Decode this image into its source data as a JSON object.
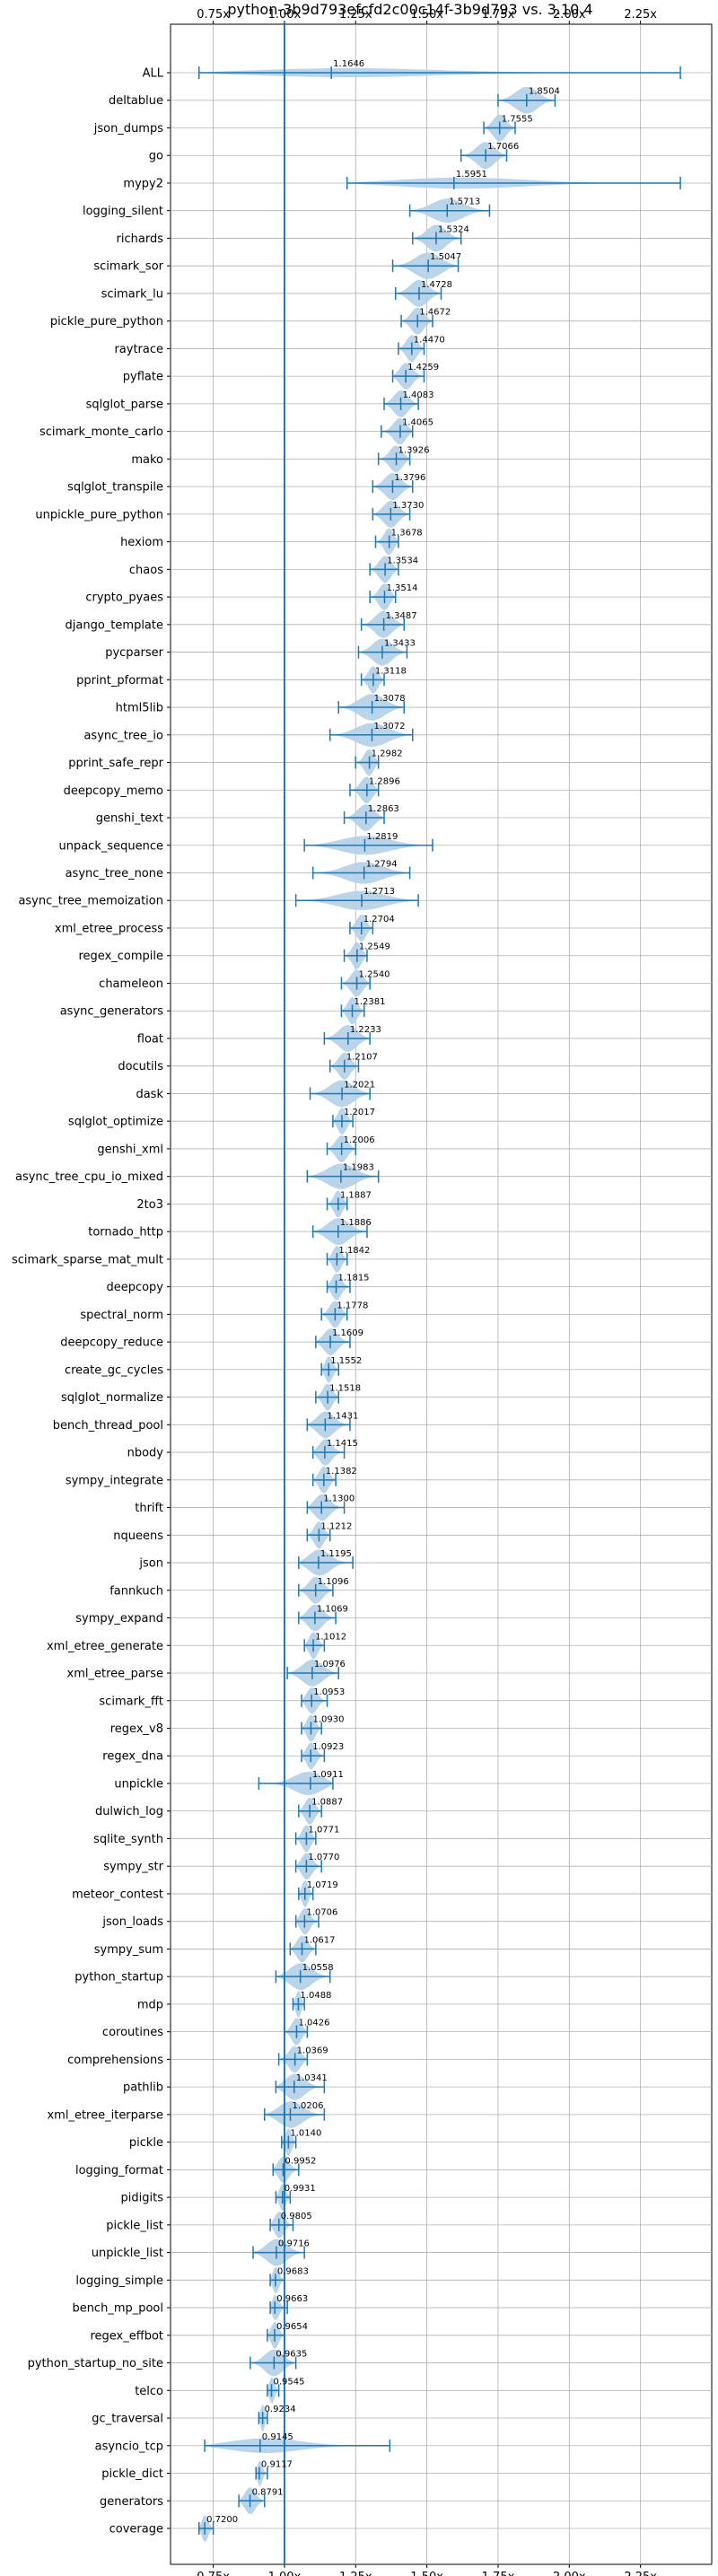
{
  "chart_data": {
    "type": "violin",
    "title": "python-3b9d793efcfd2c00c14f-3b9d793 vs. 3.10.4",
    "orientation": "horizontal",
    "xlim": [
      0.6,
      2.5
    ],
    "xticks": [
      0.75,
      1.0,
      1.25,
      1.5,
      1.75,
      2.0,
      2.25
    ],
    "xtick_labels": [
      "0.75x",
      "1.00x",
      "1.25x",
      "1.50x",
      "1.75x",
      "2.00x",
      "2.25x"
    ],
    "reference_line": 1.0,
    "grid": true,
    "colors": {
      "violin": "#b3cfe8",
      "line": "#1f77b4",
      "grid": "#b0b0b0"
    },
    "categories": [
      "ALL",
      "deltablue",
      "json_dumps",
      "go",
      "mypy2",
      "logging_silent",
      "richards",
      "scimark_sor",
      "scimark_lu",
      "pickle_pure_python",
      "raytrace",
      "pyflate",
      "sqlglot_parse",
      "scimark_monte_carlo",
      "mako",
      "sqlglot_transpile",
      "unpickle_pure_python",
      "hexiom",
      "chaos",
      "crypto_pyaes",
      "django_template",
      "pycparser",
      "pprint_pformat",
      "html5lib",
      "async_tree_io",
      "pprint_safe_repr",
      "deepcopy_memo",
      "genshi_text",
      "unpack_sequence",
      "async_tree_none",
      "async_tree_memoization",
      "xml_etree_process",
      "regex_compile",
      "chameleon",
      "async_generators",
      "float",
      "docutils",
      "dask",
      "sqlglot_optimize",
      "genshi_xml",
      "async_tree_cpu_io_mixed",
      "2to3",
      "tornado_http",
      "scimark_sparse_mat_mult",
      "deepcopy",
      "spectral_norm",
      "deepcopy_reduce",
      "create_gc_cycles",
      "sqlglot_normalize",
      "bench_thread_pool",
      "nbody",
      "sympy_integrate",
      "thrift",
      "nqueens",
      "json",
      "fannkuch",
      "sympy_expand",
      "xml_etree_generate",
      "xml_etree_parse",
      "scimark_fft",
      "regex_v8",
      "regex_dna",
      "unpickle",
      "dulwich_log",
      "sqlite_synth",
      "sympy_str",
      "meteor_contest",
      "json_loads",
      "sympy_sum",
      "python_startup",
      "mdp",
      "coroutines",
      "comprehensions",
      "pathlib",
      "xml_etree_iterparse",
      "pickle",
      "logging_format",
      "pidigits",
      "pickle_list",
      "unpickle_list",
      "logging_simple",
      "bench_mp_pool",
      "regex_effbot",
      "python_startup_no_site",
      "telco",
      "gc_traversal",
      "asyncio_tcp",
      "pickle_dict",
      "generators",
      "coverage"
    ],
    "series": [
      {
        "values": [
          1.1646,
          1.8504,
          1.7555,
          1.7066,
          1.5951,
          1.5713,
          1.5324,
          1.5047,
          1.4728,
          1.4672,
          1.447,
          1.4259,
          1.4083,
          1.4065,
          1.3926,
          1.3796,
          1.373,
          1.3678,
          1.3534,
          1.3514,
          1.3487,
          1.3433,
          1.3118,
          1.3078,
          1.3072,
          1.2982,
          1.2896,
          1.2863,
          1.2819,
          1.2794,
          1.2713,
          1.2704,
          1.2549,
          1.254,
          1.2381,
          1.2233,
          1.2107,
          1.2021,
          1.2017,
          1.2006,
          1.1983,
          1.1887,
          1.1886,
          1.1842,
          1.1815,
          1.1778,
          1.1609,
          1.1552,
          1.1518,
          1.1431,
          1.1415,
          1.1382,
          1.13,
          1.1212,
          1.1195,
          1.1096,
          1.1069,
          1.1012,
          1.0976,
          1.0953,
          1.093,
          1.0923,
          1.0911,
          1.0887,
          1.0771,
          1.077,
          1.0719,
          1.0706,
          1.0617,
          1.0558,
          1.0488,
          1.0426,
          1.0369,
          1.0341,
          1.0206,
          1.014,
          0.9952,
          0.9931,
          0.9805,
          0.9716,
          0.9683,
          0.9663,
          0.9654,
          0.9635,
          0.9545,
          0.9234,
          0.9145,
          0.9117,
          0.8791,
          0.72
        ],
        "min": [
          0.7,
          1.75,
          1.7,
          1.62,
          1.22,
          1.44,
          1.45,
          1.38,
          1.39,
          1.41,
          1.4,
          1.38,
          1.35,
          1.34,
          1.33,
          1.31,
          1.31,
          1.32,
          1.3,
          1.3,
          1.27,
          1.26,
          1.27,
          1.19,
          1.16,
          1.25,
          1.23,
          1.21,
          1.07,
          1.1,
          1.04,
          1.23,
          1.21,
          1.2,
          1.2,
          1.14,
          1.16,
          1.09,
          1.17,
          1.15,
          1.08,
          1.15,
          1.1,
          1.15,
          1.15,
          1.13,
          1.11,
          1.13,
          1.11,
          1.08,
          1.1,
          1.1,
          1.08,
          1.08,
          1.05,
          1.05,
          1.05,
          1.07,
          1.01,
          1.06,
          1.06,
          1.06,
          0.91,
          1.05,
          1.04,
          1.04,
          1.05,
          1.04,
          1.02,
          0.97,
          1.03,
          1.0,
          0.98,
          0.97,
          0.93,
          0.99,
          0.96,
          0.97,
          0.95,
          0.89,
          0.95,
          0.95,
          0.94,
          0.88,
          0.94,
          0.91,
          0.72,
          0.9,
          0.84,
          0.7
        ],
        "max": [
          2.39,
          1.95,
          1.81,
          1.78,
          2.39,
          1.72,
          1.62,
          1.61,
          1.55,
          1.52,
          1.49,
          1.49,
          1.47,
          1.45,
          1.44,
          1.45,
          1.44,
          1.4,
          1.4,
          1.39,
          1.42,
          1.43,
          1.35,
          1.42,
          1.45,
          1.33,
          1.33,
          1.35,
          1.52,
          1.44,
          1.47,
          1.31,
          1.29,
          1.3,
          1.28,
          1.3,
          1.26,
          1.3,
          1.24,
          1.25,
          1.33,
          1.22,
          1.29,
          1.22,
          1.23,
          1.22,
          1.23,
          1.19,
          1.19,
          1.23,
          1.21,
          1.18,
          1.21,
          1.16,
          1.24,
          1.17,
          1.18,
          1.14,
          1.19,
          1.15,
          1.13,
          1.14,
          1.17,
          1.13,
          1.11,
          1.13,
          1.1,
          1.12,
          1.11,
          1.16,
          1.07,
          1.08,
          1.08,
          1.14,
          1.14,
          1.04,
          1.05,
          1.02,
          1.03,
          1.07,
          1.0,
          1.01,
          1.0,
          1.04,
          0.98,
          0.94,
          1.37,
          0.94,
          0.93,
          0.75
        ]
      }
    ]
  }
}
